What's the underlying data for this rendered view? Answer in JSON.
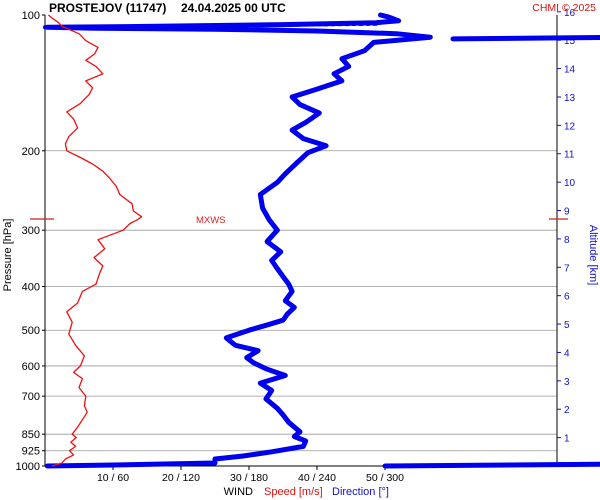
{
  "header": {
    "station": "PROSTEJOV (11747)",
    "datetime": "24.04.2025 00 UTC",
    "credit": "CHMI © 2025"
  },
  "chart_data": {
    "type": "line",
    "ylabel_left": "Pressure [hPa]",
    "ylabel_right": "Altitude [km]",
    "pressure_ticks": [
      "100",
      "200",
      "300",
      "400",
      "500",
      "600",
      "700",
      "850",
      "925",
      "1000"
    ],
    "altitude_ticks": [
      "1",
      "2",
      "3",
      "4",
      "5",
      "6",
      "7",
      "8",
      "9",
      "10",
      "11",
      "12",
      "13",
      "14",
      "15",
      "16"
    ],
    "x_ticks": [
      "10 / 60",
      "20 / 120",
      "30 / 180",
      "40 / 240",
      "50 / 300"
    ],
    "xlabel": {
      "wind": "WIND",
      "speed": "Speed [m/s]",
      "direction": "Direction [°]"
    },
    "annotation": "MXWS",
    "colors": {
      "speed": "#ee1111",
      "direction": "#0000ee",
      "grid": "#999999",
      "axis_blue": "#1111cc"
    },
    "series": [
      {
        "name": "Speed [m/s]",
        "x_unit": "m/s",
        "points": [
          [
            1.0,
            1000
          ],
          [
            2.5,
            985
          ],
          [
            3.0,
            965
          ],
          [
            4.2,
            945
          ],
          [
            3.6,
            925
          ],
          [
            4.5,
            905
          ],
          [
            3.8,
            885
          ],
          [
            4.6,
            865
          ],
          [
            4.0,
            850
          ],
          [
            4.8,
            820
          ],
          [
            5.5,
            790
          ],
          [
            6.2,
            760
          ],
          [
            5.8,
            735
          ],
          [
            6.0,
            700
          ],
          [
            5.0,
            670
          ],
          [
            5.5,
            640
          ],
          [
            4.2,
            620
          ],
          [
            5.2,
            600
          ],
          [
            5.8,
            570
          ],
          [
            4.5,
            540
          ],
          [
            3.5,
            510
          ],
          [
            4.0,
            480
          ],
          [
            3.2,
            455
          ],
          [
            4.8,
            435
          ],
          [
            5.5,
            410
          ],
          [
            7.5,
            395
          ],
          [
            8.0,
            375
          ],
          [
            8.5,
            360
          ],
          [
            7.2,
            345
          ],
          [
            8.8,
            330
          ],
          [
            7.8,
            315
          ],
          [
            11.5,
            300
          ],
          [
            12.5,
            290
          ],
          [
            13.5,
            285
          ],
          [
            14.2,
            280
          ],
          [
            13.0,
            272
          ],
          [
            12.8,
            262
          ],
          [
            11.0,
            250
          ],
          [
            10.5,
            240
          ],
          [
            9.5,
            230
          ],
          [
            8.5,
            222
          ],
          [
            7.0,
            214
          ],
          [
            5.2,
            207
          ],
          [
            3.2,
            200
          ],
          [
            3.0,
            193
          ],
          [
            3.5,
            186
          ],
          [
            4.8,
            178
          ],
          [
            4.2,
            170
          ],
          [
            3.2,
            164
          ],
          [
            5.2,
            157
          ],
          [
            6.5,
            150
          ],
          [
            7.0,
            145
          ],
          [
            6.0,
            140
          ],
          [
            8.5,
            135
          ],
          [
            7.5,
            130
          ],
          [
            6.0,
            126
          ],
          [
            7.3,
            122
          ],
          [
            7.8,
            118
          ],
          [
            6.0,
            114
          ],
          [
            5.0,
            110
          ],
          [
            2.5,
            106
          ],
          [
            2.0,
            104
          ],
          [
            1.0,
            101.5
          ],
          [
            0.5,
            100
          ]
        ]
      },
      {
        "name": "Direction [°]",
        "x_unit": "deg",
        "points": [
          [
            2,
            1000
          ],
          [
            60,
            995
          ],
          [
            150,
            985
          ],
          [
            150,
            965
          ],
          [
            175,
            950
          ],
          [
            200,
            930
          ],
          [
            228,
            905
          ],
          [
            230,
            880
          ],
          [
            220,
            860
          ],
          [
            225,
            840
          ],
          [
            215,
            800
          ],
          [
            210,
            770
          ],
          [
            205,
            745
          ],
          [
            195,
            710
          ],
          [
            200,
            680
          ],
          [
            190,
            655
          ],
          [
            212,
            630
          ],
          [
            196,
            610
          ],
          [
            184,
            590
          ],
          [
            178,
            575
          ],
          [
            188,
            555
          ],
          [
            168,
            540
          ],
          [
            160,
            520
          ],
          [
            180,
            500
          ],
          [
            198,
            485
          ],
          [
            210,
            475
          ],
          [
            214,
            460
          ],
          [
            220,
            445
          ],
          [
            212,
            430
          ],
          [
            218,
            410
          ],
          [
            215,
            395
          ],
          [
            210,
            380
          ],
          [
            205,
            365
          ],
          [
            200,
            350
          ],
          [
            208,
            335
          ],
          [
            196,
            318
          ],
          [
            205,
            300
          ],
          [
            198,
            285
          ],
          [
            192,
            268
          ],
          [
            190,
            250
          ],
          [
            205,
            235
          ],
          [
            212,
            225
          ],
          [
            222,
            213
          ],
          [
            232,
            202
          ],
          [
            248,
            195
          ],
          [
            228,
            188
          ],
          [
            218,
            180
          ],
          [
            230,
            173
          ],
          [
            242,
            165
          ],
          [
            225,
            158
          ],
          [
            218,
            152
          ],
          [
            240,
            146
          ],
          [
            262,
            140
          ],
          [
            255,
            135
          ],
          [
            268,
            130
          ],
          [
            262,
            125
          ],
          [
            282,
            120
          ],
          [
            290,
            115
          ],
          [
            340,
            112
          ],
          [
            310,
            110
          ],
          [
            240,
            108.5
          ],
          [
            150,
            107.5
          ],
          [
            45,
            107
          ],
          [
            2,
            106.5
          ],
          [
            90,
            106
          ],
          [
            210,
            105
          ],
          [
            292,
            104
          ],
          [
            312,
            103
          ],
          [
            303,
            101
          ],
          [
            296,
            100
          ]
        ]
      }
    ],
    "legend": "bottom-center",
    "grid": true
  }
}
